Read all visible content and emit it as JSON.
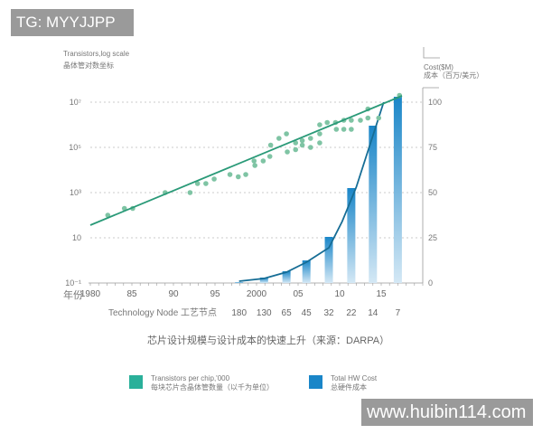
{
  "watermarks": {
    "top_left": "TG: MYYJJPP",
    "bottom_right": "www.huibin114.com"
  },
  "chart_data": {
    "type": "scatter+line+bar",
    "title": "芯片设计规模与设计成本的快速上升（来源：DARPA）",
    "y_left": {
      "label_en": "Transistors,log scale",
      "label_cn": "晶体管对数坐标",
      "scale": "log",
      "ticks": [
        "10⁻¹",
        "10",
        "10³",
        "10⁵",
        "10⁷"
      ],
      "tick_values": [
        -1,
        1,
        3,
        5,
        7
      ]
    },
    "y_right": {
      "label_en": "Cost($M)",
      "label_cn": "成本（百万/美元）",
      "ticks": [
        "0",
        "25",
        "50",
        "75",
        "100"
      ],
      "range": [
        0,
        100
      ]
    },
    "x": {
      "label_prefix": "年份",
      "ticks": [
        "1980",
        "85",
        "90",
        "95",
        "2000",
        "05",
        "10",
        "15"
      ],
      "tick_years": [
        1980,
        1985,
        1990,
        1995,
        2000,
        2005,
        2010,
        2015
      ],
      "range": [
        1980,
        2020
      ]
    },
    "node_axis": {
      "label": "Technology Node 工艺节点",
      "nodes": [
        "180",
        "130",
        "65",
        "45",
        "32",
        "22",
        "14",
        "7"
      ]
    },
    "grid": "dashed horizontal",
    "legend_position": "bottom",
    "series": [
      {
        "name": "Transistors per chip,'000",
        "name_cn": "每块芯片含晶体管数量（以千为单位）",
        "color": "#2ab09a",
        "kind": "scatter",
        "log10_values": true,
        "points": [
          [
            1982.1,
            2.0
          ],
          [
            1984.1,
            2.3
          ],
          [
            1985.1,
            2.3
          ],
          [
            1989,
            3.0
          ],
          [
            1992,
            3.0
          ],
          [
            1992.9,
            3.4
          ],
          [
            1993.9,
            3.4
          ],
          [
            1994.9,
            3.6
          ],
          [
            1996.8,
            3.8
          ],
          [
            1997.8,
            3.7
          ],
          [
            1998.7,
            3.8
          ],
          [
            1999.7,
            4.4
          ],
          [
            1999.8,
            4.2
          ],
          [
            2000.8,
            4.4
          ],
          [
            2001.6,
            4.6
          ],
          [
            2001.7,
            5.1
          ],
          [
            2002.7,
            5.4
          ],
          [
            2003.6,
            5.6
          ],
          [
            2003.7,
            4.8
          ],
          [
            2004.7,
            4.9
          ],
          [
            2004.7,
            5.2
          ],
          [
            2005.5,
            5.3
          ],
          [
            2005.5,
            5.1
          ],
          [
            2006.5,
            5.4
          ],
          [
            2006.5,
            5.0
          ],
          [
            2007.6,
            5.6
          ],
          [
            2007.6,
            5.2
          ],
          [
            2007.6,
            6.0
          ],
          [
            2008.5,
            6.1
          ],
          [
            2009.5,
            6.1
          ],
          [
            2009.6,
            5.8
          ],
          [
            2010.5,
            6.2
          ],
          [
            2010.5,
            5.8
          ],
          [
            2011.4,
            6.2
          ],
          [
            2011.4,
            5.8
          ],
          [
            2012.5,
            6.2
          ],
          [
            2013.4,
            6.7
          ],
          [
            2013.4,
            6.3
          ],
          [
            2014.7,
            6.3
          ],
          [
            2017.2,
            7.3
          ]
        ],
        "trend": [
          [
            1980,
            1.56
          ],
          [
            2017.5,
            7.28
          ]
        ]
      },
      {
        "name": "Total HW Cost",
        "name_cn": "总硬件成本",
        "color": "#1a86c8",
        "kind": "bar",
        "years": [
          1997.9,
          2000.9,
          2003.6,
          2006,
          2008.7,
          2011.4,
          2014,
          2017
        ],
        "values": [
          0.5,
          3,
          6.5,
          12.5,
          25.5,
          52.5,
          87,
          103
        ],
        "line": [
          [
            1997.9,
            1
          ],
          [
            2000.9,
            2.5
          ],
          [
            2003.6,
            6
          ],
          [
            2006,
            11.5
          ],
          [
            2008.7,
            19.5
          ],
          [
            2010.3,
            34
          ],
          [
            2012,
            53
          ],
          [
            2015.3,
            100
          ]
        ]
      }
    ]
  }
}
